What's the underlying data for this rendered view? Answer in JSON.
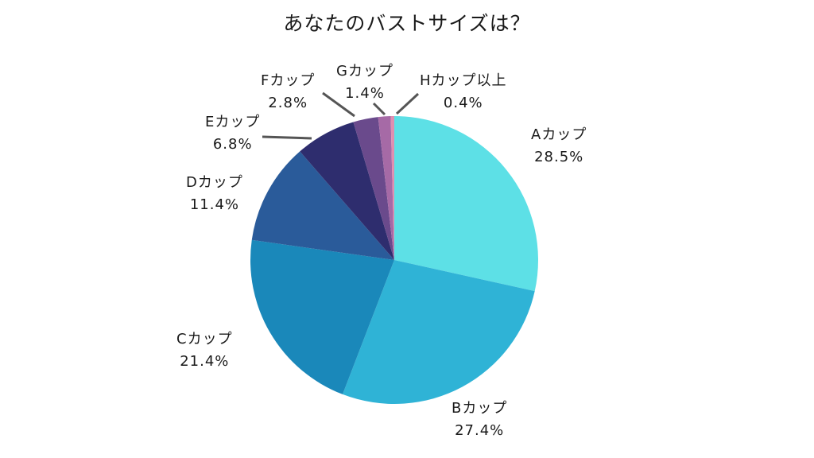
{
  "chart_data": {
    "type": "pie",
    "title": "あなたのバストサイズは？",
    "start_angle": "12 o'clock",
    "direction": "clockwise",
    "categories": [
      "Aカップ",
      "Bカップ",
      "Cカップ",
      "Dカップ",
      "Eカップ",
      "Fカップ",
      "Gカップ",
      "Hカップ以上"
    ],
    "values": [
      28.5,
      27.4,
      21.4,
      11.4,
      6.8,
      2.8,
      1.4,
      0.4
    ],
    "value_labels": [
      "28.5%",
      "27.4%",
      "21.4%",
      "11.4%",
      "6.8%",
      "2.8%",
      "1.4%",
      "0.4%"
    ],
    "colors": [
      "#5DE0E6",
      "#2FB3D6",
      "#1A88BA",
      "#2A5B9A",
      "#2E2D6E",
      "#6A4A8C",
      "#A66AA6",
      "#E08FB0"
    ],
    "legend": "none (labels placed outside slices with leader lines for small slices)"
  },
  "labels": [
    {
      "name": "Aカップ",
      "value": "28.5%"
    },
    {
      "name": "Bカップ",
      "value": "27.4%"
    },
    {
      "name": "Cカップ",
      "value": "21.4%"
    },
    {
      "name": "Dカップ",
      "value": "11.4%"
    },
    {
      "name": "Eカップ",
      "value": "6.8%"
    },
    {
      "name": "Fカップ",
      "value": "2.8%"
    },
    {
      "name": "Gカップ",
      "value": "1.4%"
    },
    {
      "name": "Hカップ以上",
      "value": "0.4%"
    }
  ]
}
